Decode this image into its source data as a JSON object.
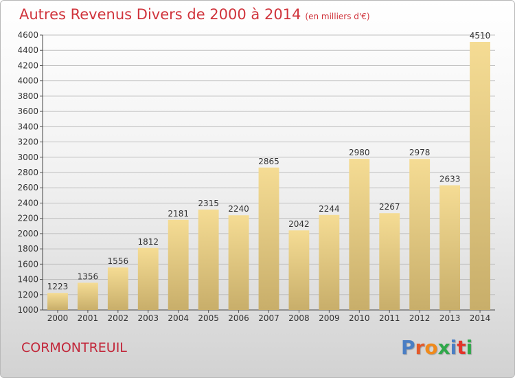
{
  "header": {
    "title": "Autres Revenus Divers de 2000 à 2014",
    "unit": "(en milliers d'€)"
  },
  "footer": {
    "place": "CORMONTREUIL",
    "logo": "Proxiti"
  },
  "colors": {
    "title": "#d0343c",
    "place": "#c2273a",
    "bar_top": "#f5dc94",
    "bar_bottom": "#c8ae6a",
    "grid": "#bfbfbf",
    "logo_letters": [
      "#4a7ec4",
      "#e35a2a",
      "#f08a1c",
      "#2fa84a",
      "#4a7ec4",
      "#e3342a",
      "#2fa84a"
    ]
  },
  "chart_data": {
    "type": "bar",
    "title": "Autres Revenus Divers de 2000 à 2014",
    "subtitle": "(en milliers d'€)",
    "xlabel": "",
    "ylabel": "",
    "categories": [
      "2000",
      "2001",
      "2002",
      "2003",
      "2004",
      "2005",
      "2006",
      "2007",
      "2008",
      "2009",
      "2010",
      "2011",
      "2012",
      "2013",
      "2014"
    ],
    "values": [
      1223,
      1356,
      1556,
      1812,
      2181,
      2315,
      2240,
      2865,
      2042,
      2244,
      2980,
      2267,
      2978,
      2633,
      4510
    ],
    "ylim": [
      1000,
      4600
    ],
    "yticks": [
      1000,
      1200,
      1400,
      1600,
      1800,
      2000,
      2200,
      2400,
      2600,
      2800,
      3000,
      3200,
      3400,
      3600,
      3800,
      4000,
      4200,
      4400,
      4600
    ],
    "grid": true,
    "legend": "none"
  }
}
